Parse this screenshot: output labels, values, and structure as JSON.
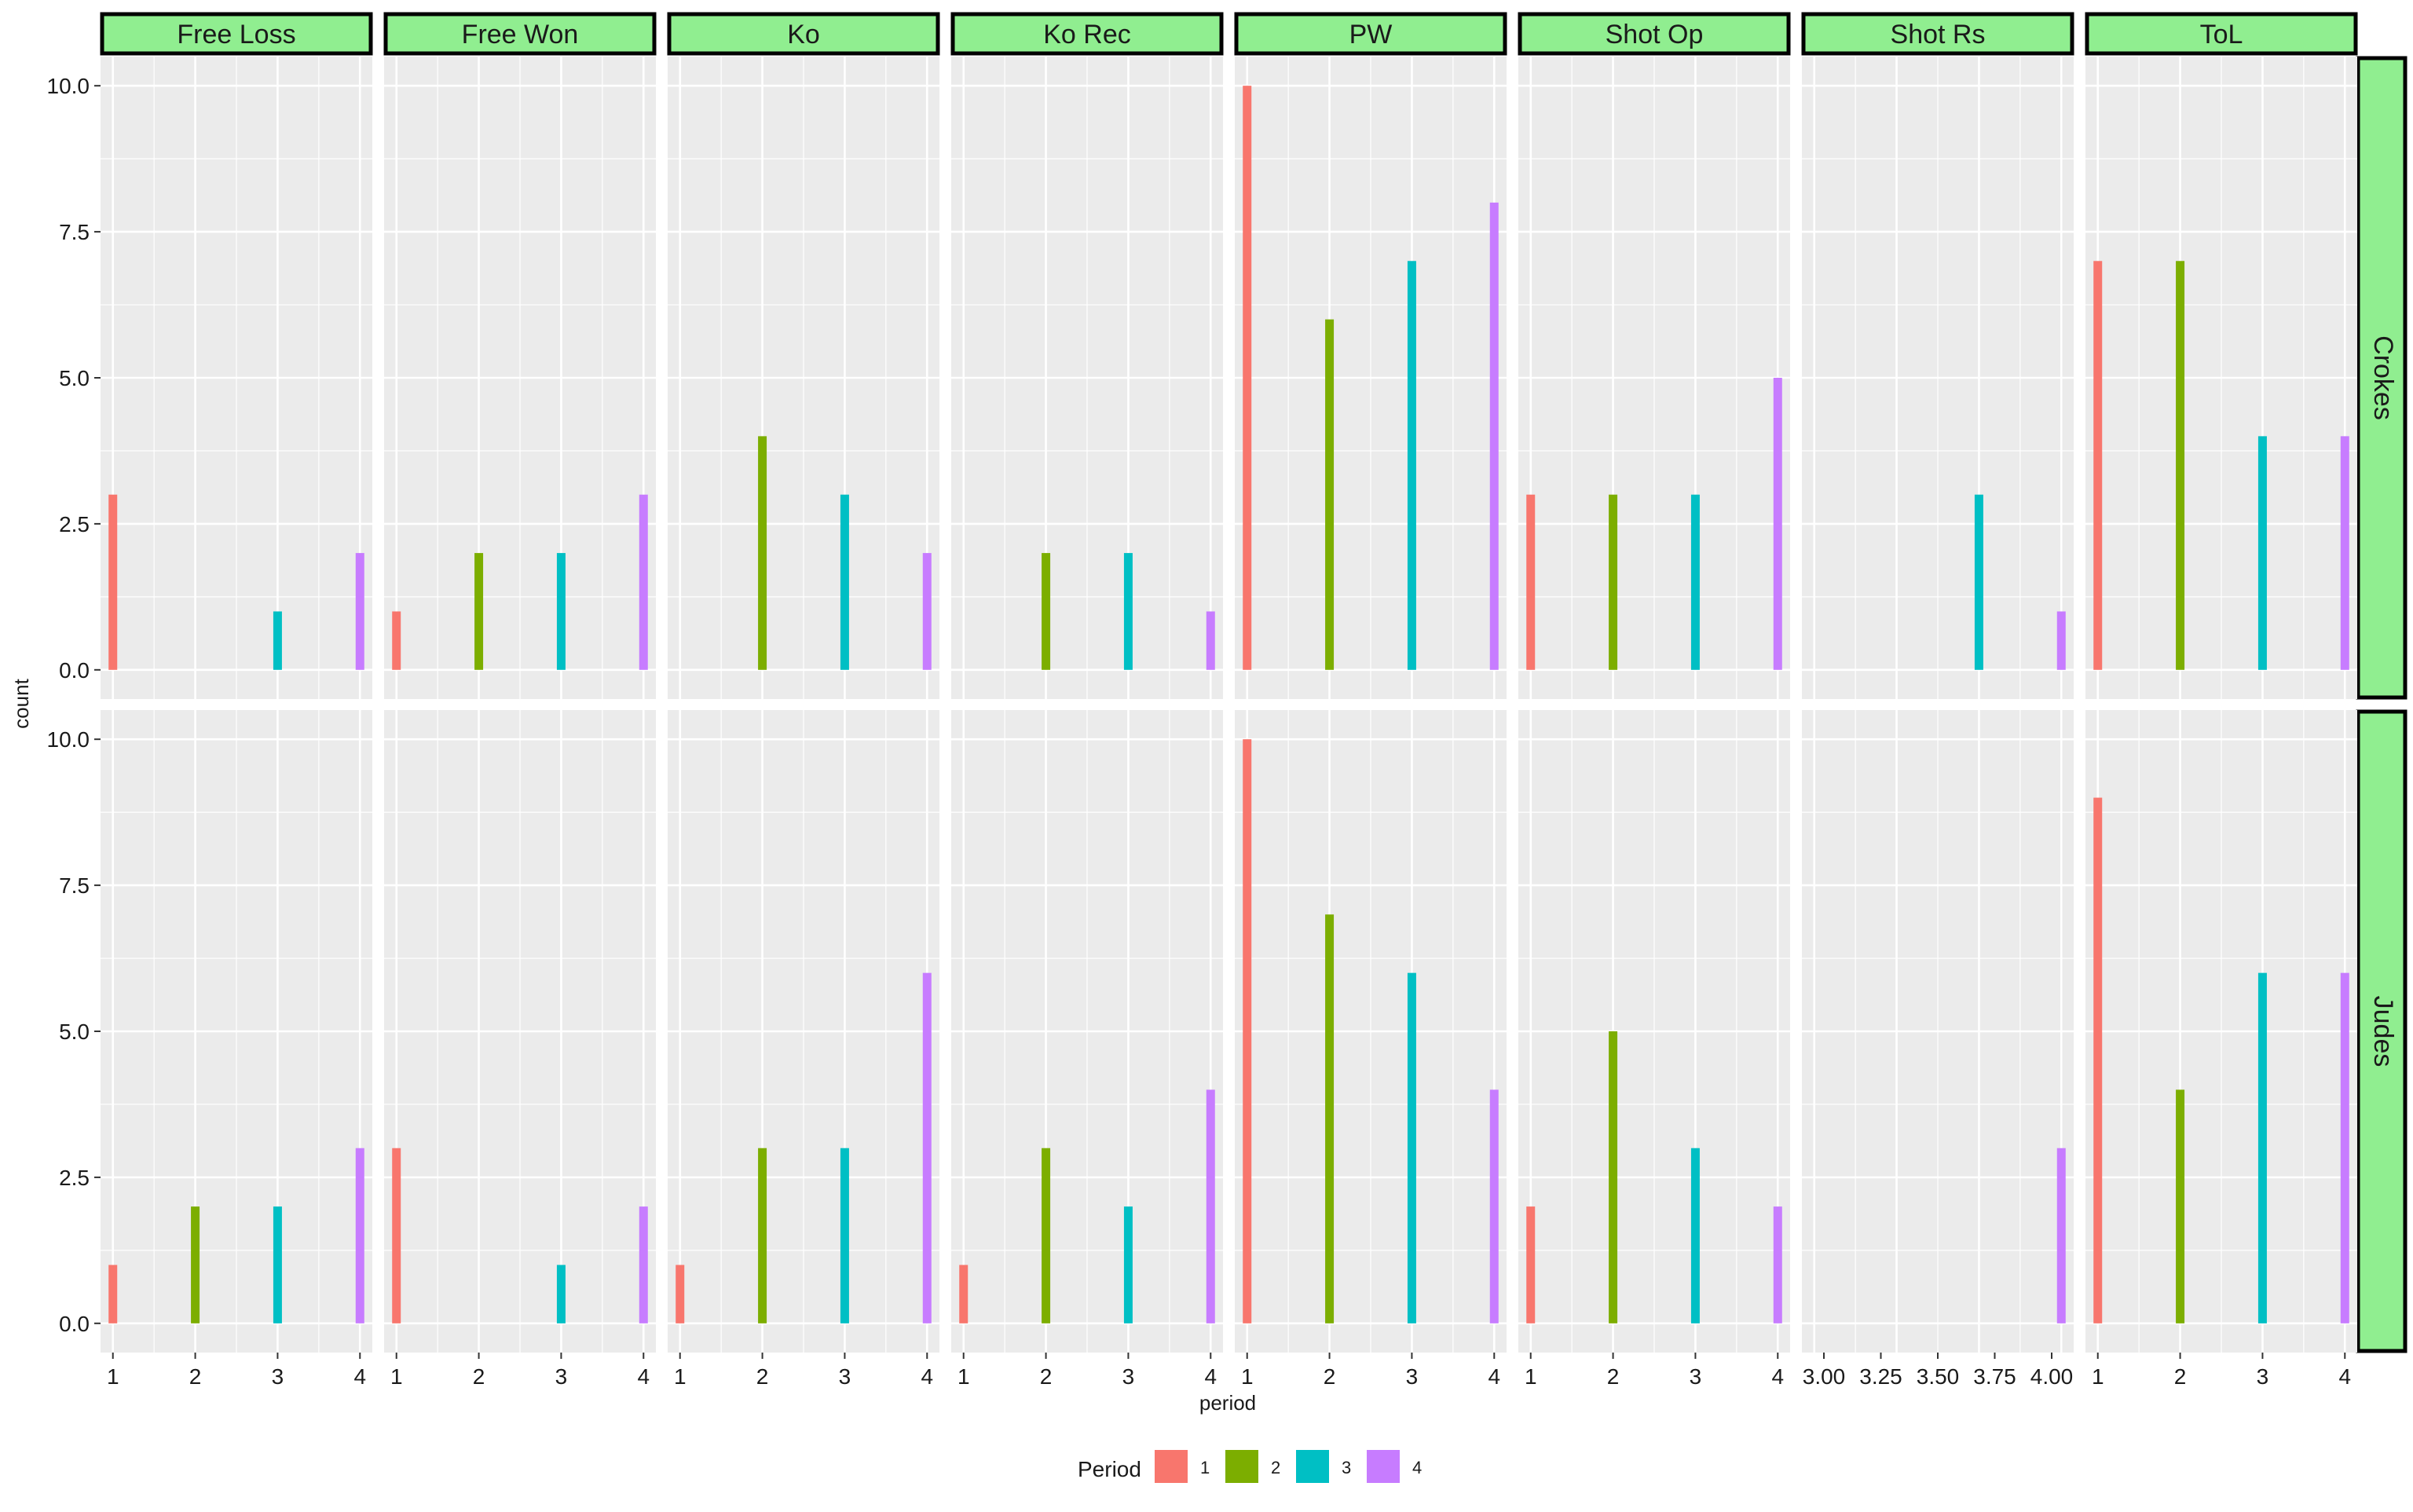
{
  "chart_data": {
    "type": "bar",
    "facet_columns": [
      "Free Loss",
      "Free Won",
      "Ko",
      "Ko Rec",
      "PW",
      "Shot Op",
      "Shot Rs",
      "ToL"
    ],
    "facet_rows": [
      "Crokes",
      "Judes"
    ],
    "xlabel": "period",
    "ylabel": "count",
    "ylim": [
      0,
      10
    ],
    "y_ticks": [
      "0.0",
      "2.5",
      "5.0",
      "7.5",
      "10.0"
    ],
    "x_ticks_default": [
      "1",
      "2",
      "3",
      "4"
    ],
    "x_ticks_shot_rs": [
      "3.00",
      "3.25",
      "3.50",
      "3.75",
      "4.00"
    ],
    "legend": {
      "title": "Period",
      "position": "bottom",
      "entries": [
        "1",
        "2",
        "3",
        "4"
      ]
    },
    "colors": {
      "1": "#F8766D",
      "2": "#7CAE00",
      "3": "#00BFC4",
      "4": "#C77CFF",
      "strip": "#90EE90",
      "panel": "#EBEBEB",
      "grid": "#FFFFFF"
    },
    "grid": true,
    "series": [
      {
        "team": "Crokes",
        "facet": "Free Loss",
        "values": {
          "1": 3,
          "3": 1,
          "4": 2
        }
      },
      {
        "team": "Crokes",
        "facet": "Free Won",
        "values": {
          "1": 1,
          "2": 2,
          "3": 2,
          "4": 3
        }
      },
      {
        "team": "Crokes",
        "facet": "Ko",
        "values": {
          "2": 4,
          "3": 3,
          "4": 2
        }
      },
      {
        "team": "Crokes",
        "facet": "Ko Rec",
        "values": {
          "2": 2,
          "3": 2,
          "4": 1
        }
      },
      {
        "team": "Crokes",
        "facet": "PW",
        "values": {
          "1": 10,
          "2": 6,
          "3": 7,
          "4": 8
        }
      },
      {
        "team": "Crokes",
        "facet": "Shot Op",
        "values": {
          "1": 3,
          "2": 3,
          "3": 3,
          "4": 5
        }
      },
      {
        "team": "Crokes",
        "facet": "Shot Rs",
        "values": {
          "3": 3,
          "4": 1
        }
      },
      {
        "team": "Crokes",
        "facet": "ToL",
        "values": {
          "1": 7,
          "2": 7,
          "3": 4,
          "4": 4
        }
      },
      {
        "team": "Judes",
        "facet": "Free Loss",
        "values": {
          "1": 1,
          "2": 2,
          "3": 2,
          "4": 3
        }
      },
      {
        "team": "Judes",
        "facet": "Free Won",
        "values": {
          "1": 3,
          "3": 1,
          "4": 2
        }
      },
      {
        "team": "Judes",
        "facet": "Ko",
        "values": {
          "1": 1,
          "2": 3,
          "3": 3,
          "4": 6
        }
      },
      {
        "team": "Judes",
        "facet": "Ko Rec",
        "values": {
          "1": 1,
          "2": 3,
          "3": 2,
          "4": 4
        }
      },
      {
        "team": "Judes",
        "facet": "PW",
        "values": {
          "1": 10,
          "2": 7,
          "3": 6,
          "4": 4
        }
      },
      {
        "team": "Judes",
        "facet": "Shot Op",
        "values": {
          "1": 2,
          "2": 5,
          "3": 3,
          "4": 2
        }
      },
      {
        "team": "Judes",
        "facet": "Shot Rs",
        "values": {
          "4": 3
        }
      },
      {
        "team": "Judes",
        "facet": "ToL",
        "values": {
          "1": 9,
          "2": 4,
          "3": 6,
          "4": 6
        }
      }
    ]
  }
}
